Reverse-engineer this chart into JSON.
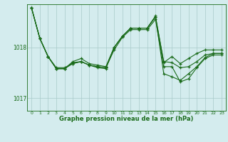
{
  "title": "Graphe pression niveau de la mer (hPa)",
  "bg_color": "#d4ecee",
  "line_color": "#1a6b1a",
  "grid_color": "#a8caca",
  "ylim": [
    1016.75,
    1018.85
  ],
  "xlim": [
    -0.5,
    23.5
  ],
  "yticks": [
    1017,
    1018
  ],
  "xticks": [
    0,
    1,
    2,
    3,
    4,
    5,
    6,
    7,
    8,
    9,
    10,
    11,
    12,
    13,
    14,
    15,
    16,
    17,
    18,
    19,
    20,
    21,
    22,
    23
  ],
  "series": [
    [
      1018.78,
      1018.18,
      1017.82,
      1017.6,
      1017.6,
      1017.68,
      1017.72,
      1017.65,
      1017.62,
      1017.6,
      1018.0,
      1018.22,
      1018.38,
      1018.38,
      1018.38,
      1018.6,
      1017.72,
      1017.7,
      1017.6,
      1017.62,
      1017.72,
      1017.85,
      1017.88,
      1017.88
    ],
    [
      1018.78,
      1018.18,
      1017.82,
      1017.58,
      1017.58,
      1017.7,
      1017.72,
      1017.65,
      1017.6,
      1017.58,
      1018.0,
      1018.22,
      1018.38,
      1018.38,
      1018.38,
      1018.6,
      1017.48,
      1017.42,
      1017.35,
      1017.48,
      1017.62,
      1017.8,
      1017.88,
      1017.88
    ],
    [
      1018.78,
      1018.18,
      1017.82,
      1017.58,
      1017.58,
      1017.72,
      1017.78,
      1017.68,
      1017.65,
      1017.62,
      1018.0,
      1018.22,
      1018.38,
      1018.38,
      1018.38,
      1018.62,
      1017.7,
      1017.82,
      1017.68,
      1017.78,
      1017.88,
      1017.95,
      1017.95,
      1017.95
    ],
    [
      1018.78,
      1018.18,
      1017.82,
      1017.58,
      1017.58,
      1017.68,
      1017.72,
      1017.65,
      1017.62,
      1017.6,
      1017.95,
      1018.2,
      1018.35,
      1018.35,
      1018.35,
      1018.55,
      1017.62,
      1017.62,
      1017.32,
      1017.38,
      1017.6,
      1017.78,
      1017.85,
      1017.85
    ]
  ]
}
